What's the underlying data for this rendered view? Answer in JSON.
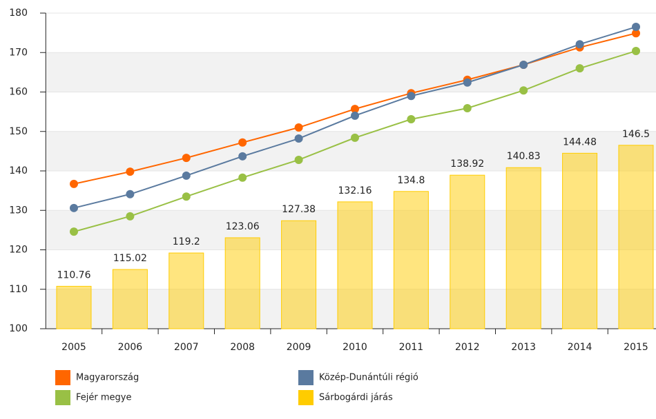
{
  "chart_data": {
    "type": "bar-line",
    "categories": [
      "2005",
      "2006",
      "2007",
      "2008",
      "2009",
      "2010",
      "2011",
      "2012",
      "2013",
      "2014",
      "2015"
    ],
    "series": [
      {
        "name": "Magyarország",
        "type": "line",
        "color": "#ff6600",
        "values": [
          136.7,
          139.8,
          143.3,
          147.2,
          151.0,
          155.7,
          159.7,
          163.1,
          166.9,
          171.3,
          174.9
        ]
      },
      {
        "name": "Közép-Dunántúli régió",
        "type": "line",
        "color": "#5a7a9f",
        "values": [
          130.6,
          134.1,
          138.8,
          143.7,
          148.2,
          154.0,
          159.0,
          162.4,
          166.9,
          172.1,
          176.5
        ]
      },
      {
        "name": "Fejér megye",
        "type": "line",
        "color": "#99c045",
        "values": [
          124.6,
          128.5,
          133.5,
          138.3,
          142.8,
          148.4,
          153.1,
          155.9,
          160.4,
          166.0,
          170.4
        ]
      },
      {
        "name": "Sárbogárdi járás",
        "type": "bar",
        "color": "#ffcc00",
        "values": [
          110.76,
          115.02,
          119.2,
          123.06,
          127.38,
          132.16,
          134.8,
          138.92,
          140.83,
          144.48,
          146.5
        ]
      }
    ],
    "ylim": [
      100,
      180
    ],
    "yticks": [
      100,
      110,
      120,
      130,
      140,
      150,
      160,
      170,
      180
    ],
    "grid": true
  }
}
